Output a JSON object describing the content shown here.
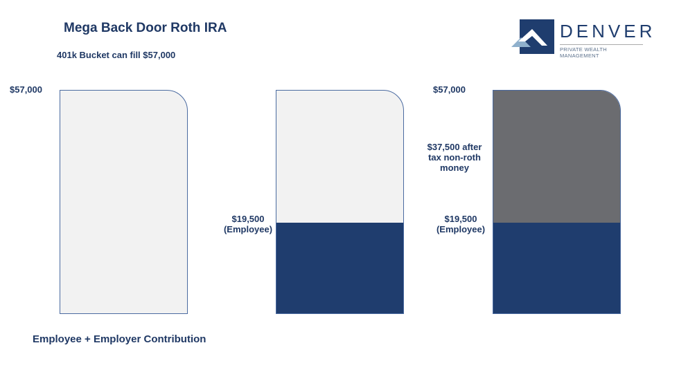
{
  "title": "Mega Back Door Roth IRA",
  "subtitle": "401k Bucket can fill $57,000",
  "footer": "Employee + Employer Contribution",
  "logo": {
    "name": "DENVER",
    "tagline": "PRIVATE WEALTH MANAGEMENT"
  },
  "colors": {
    "employee": "#1f3d6e",
    "after_tax": "#6b6c70",
    "empty": "#f2f2f2",
    "text": "#1f3864"
  },
  "buckets": [
    {
      "top_label": "$57,000"
    },
    {
      "employee_label_1": "$19,500",
      "employee_label_2": "(Employee)"
    },
    {
      "top_label": "$57,000",
      "after_tax_label_1": "$37,500 after",
      "after_tax_label_2": "tax non-roth",
      "after_tax_label_3": "money",
      "employee_label_1": "$19,500",
      "employee_label_2": "(Employee)"
    }
  ]
}
